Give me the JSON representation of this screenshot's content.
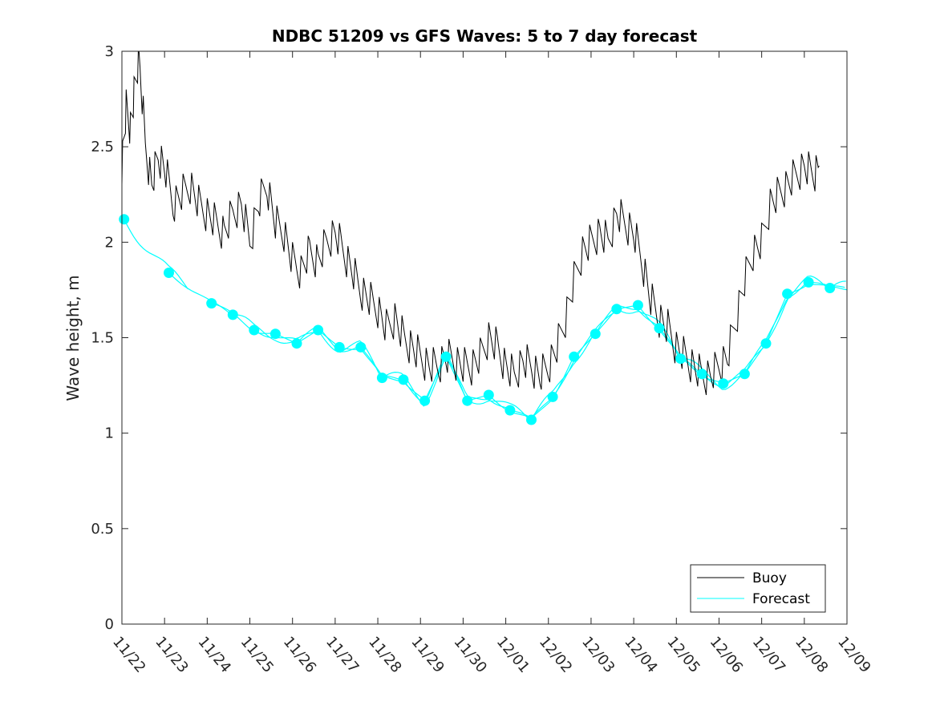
{
  "chart_data": {
    "type": "line",
    "title": "NDBC 51209 vs GFS Waves: 5 to 7 day forecast",
    "xlabel": "",
    "ylabel": "Wave height, m",
    "ylim": [
      0,
      3
    ],
    "xlim": [
      0,
      17
    ],
    "yticks": [
      0,
      0.5,
      1,
      1.5,
      2,
      2.5,
      3
    ],
    "ytick_labels": [
      "0",
      "0.5",
      "1",
      "1.5",
      "2",
      "2.5",
      "3"
    ],
    "xtick_labels": [
      "11/22",
      "11/23",
      "11/24",
      "11/25",
      "11/26",
      "11/27",
      "11/28",
      "11/29",
      "11/30",
      "12/01",
      "12/02",
      "12/03",
      "12/04",
      "12/05",
      "12/06",
      "12/07",
      "12/08",
      "12/09"
    ],
    "x_units": "days since 11/22",
    "grid": false,
    "legend_position": "bottom-right",
    "legend": [
      "Buoy",
      "Forecast"
    ],
    "colors": {
      "buoy": "#000000",
      "forecast": "#00ffff",
      "axis": "#262626"
    },
    "series": [
      {
        "name": "Buoy",
        "x": [
          0,
          0.1,
          0.2,
          0.3,
          0.4,
          0.55,
          0.7,
          0.85,
          1.0,
          1.2,
          1.4,
          1.6,
          1.8,
          2.0,
          2.2,
          2.4,
          2.6,
          2.8,
          3.0,
          3.2,
          3.4,
          3.6,
          3.8,
          4.0,
          4.2,
          4.4,
          4.6,
          4.8,
          5.0,
          5.2,
          5.4,
          5.6,
          5.8,
          6.0,
          6.2,
          6.4,
          6.6,
          6.8,
          7.0,
          7.2,
          7.4,
          7.6,
          7.8,
          8.0,
          8.2,
          8.4,
          8.6,
          8.8,
          9.0,
          9.2,
          9.4,
          9.6,
          9.8,
          10.0,
          10.2,
          10.4,
          10.6,
          10.8,
          11.0,
          11.2,
          11.4,
          11.6,
          11.8,
          12.0,
          12.2,
          12.4,
          12.6,
          12.8,
          13.0,
          13.2,
          13.4,
          13.6,
          13.8,
          14.0,
          14.2,
          14.4,
          14.6,
          14.8,
          15.0,
          15.2,
          15.4,
          15.6,
          15.8,
          16.0,
          16.2,
          16.35
        ],
        "y": [
          2.4,
          2.7,
          2.6,
          2.8,
          3.0,
          2.5,
          2.3,
          2.45,
          2.4,
          2.2,
          2.25,
          2.3,
          2.2,
          2.15,
          2.1,
          2.05,
          2.15,
          2.2,
          2.0,
          2.2,
          2.3,
          2.1,
          2.05,
          1.9,
          1.85,
          1.95,
          1.9,
          2.0,
          2.05,
          1.95,
          1.85,
          1.75,
          1.7,
          1.65,
          1.55,
          1.6,
          1.5,
          1.45,
          1.4,
          1.35,
          1.35,
          1.4,
          1.38,
          1.35,
          1.35,
          1.4,
          1.5,
          1.45,
          1.35,
          1.3,
          1.38,
          1.35,
          1.3,
          1.35,
          1.45,
          1.6,
          1.8,
          1.95,
          2.0,
          2.05,
          2.0,
          2.15,
          2.1,
          2.05,
          1.9,
          1.7,
          1.6,
          1.55,
          1.45,
          1.4,
          1.35,
          1.3,
          1.3,
          1.35,
          1.4,
          1.6,
          1.8,
          1.95,
          2.0,
          2.2,
          2.25,
          2.3,
          2.35,
          2.4,
          2.35,
          2.4
        ]
      },
      {
        "name": "Forecast",
        "x": [
          0.05,
          1.1,
          2.1,
          2.6,
          3.1,
          3.6,
          4.1,
          4.6,
          5.1,
          5.6,
          6.1,
          6.6,
          7.1,
          7.6,
          8.1,
          8.6,
          9.1,
          9.6,
          10.1,
          10.6,
          11.1,
          11.6,
          12.1,
          12.6,
          13.1,
          13.6,
          14.1,
          14.6,
          15.1,
          15.6,
          16.1,
          16.6
        ],
        "y": [
          2.12,
          1.84,
          1.68,
          1.62,
          1.54,
          1.52,
          1.47,
          1.54,
          1.45,
          1.45,
          1.29,
          1.28,
          1.17,
          1.4,
          1.17,
          1.2,
          1.12,
          1.07,
          1.19,
          1.4,
          1.52,
          1.65,
          1.67,
          1.55,
          1.39,
          1.31,
          1.26,
          1.31,
          1.47,
          1.73,
          1.79,
          1.76
        ]
      }
    ]
  }
}
